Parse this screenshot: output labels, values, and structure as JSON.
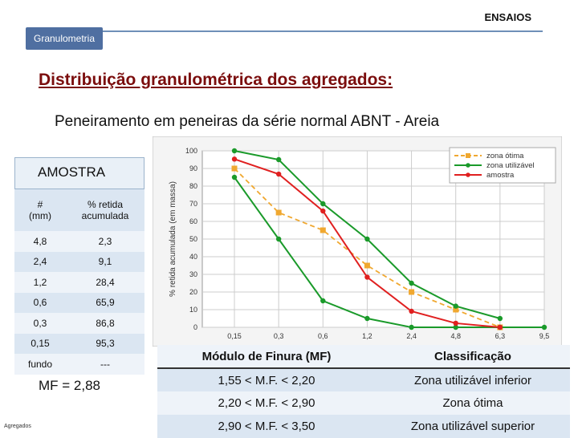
{
  "header": {
    "section": "ENSAIOS",
    "tab": "Granulometria"
  },
  "title": "Distribuição granulométrica dos agregados:",
  "subtitle": "Peneiramento em peneiras da série normal ABNT - Areia",
  "sample": {
    "title": "AMOSTRA",
    "col1": "#",
    "col1_unit": "(mm)",
    "col2": "% retida",
    "col2_sub": "acumulada",
    "rows": [
      {
        "sieve": "4,8",
        "pct": "2,3"
      },
      {
        "sieve": "2,4",
        "pct": "9,1"
      },
      {
        "sieve": "1,2",
        "pct": "28,4"
      },
      {
        "sieve": "0,6",
        "pct": "65,9"
      },
      {
        "sieve": "0,3",
        "pct": "86,8"
      },
      {
        "sieve": "0,15",
        "pct": "95,3"
      },
      {
        "sieve": "fundo",
        "pct": "---"
      }
    ],
    "mf": "MF = 2,88"
  },
  "footer": "Agregados",
  "classification": {
    "head_mf": "Módulo de Finura (MF)",
    "head_class": "Classificação",
    "rows": [
      {
        "range": "1,55  <  M.F. < 2,20",
        "label": "Zona utilizável inferior"
      },
      {
        "range": "2,20  <  M.F. < 2,90",
        "label": "Zona ótima"
      },
      {
        "range": "2,90  <  M.F. < 3,50",
        "label": "Zona utilizável superior"
      }
    ]
  },
  "colors": {
    "optimal": "#f0a830",
    "usable": "#1a9a2a",
    "sample": "#e02020",
    "title": "#7b0d0d",
    "tab": "#4f6fa1"
  },
  "chart_data": {
    "type": "line",
    "ylabel": "% retida acumulada (em massa)",
    "ylim": [
      0,
      100
    ],
    "yticks": [
      0,
      10,
      20,
      30,
      40,
      50,
      60,
      70,
      80,
      90,
      100
    ],
    "categories": [
      "0,15",
      "0,3",
      "0,6",
      "1,2",
      "2,4",
      "4,8",
      "6,3",
      "9,5"
    ],
    "grid": true,
    "legend": "top-right",
    "series": [
      {
        "name": "zona ótima",
        "style": "dashed",
        "color": "#f0a830",
        "marker": "square",
        "x": [
          0,
          1,
          2,
          3,
          4,
          5,
          6
        ],
        "values": [
          90,
          65,
          55,
          35,
          20,
          10,
          0
        ]
      },
      {
        "name": "zona utilizável",
        "style": "solid",
        "color": "#1a9a2a",
        "marker": "circle",
        "x": [
          0,
          1,
          2,
          3,
          4,
          5,
          6
        ],
        "values": [
          100,
          95,
          70,
          50,
          25,
          12,
          5
        ]
      },
      {
        "name": "",
        "style": "solid",
        "color": "#1a9a2a",
        "marker": "circle",
        "x": [
          0,
          1,
          2,
          3,
          4,
          5,
          6,
          7
        ],
        "values": [
          85,
          50,
          15,
          5,
          0,
          0,
          0,
          0
        ]
      },
      {
        "name": "amostra",
        "style": "solid",
        "color": "#e02020",
        "marker": "circle",
        "x": [
          0,
          1,
          2,
          3,
          4,
          5,
          6
        ],
        "values": [
          95.3,
          86.8,
          65.9,
          28.4,
          9.1,
          2.3,
          0
        ]
      }
    ]
  }
}
